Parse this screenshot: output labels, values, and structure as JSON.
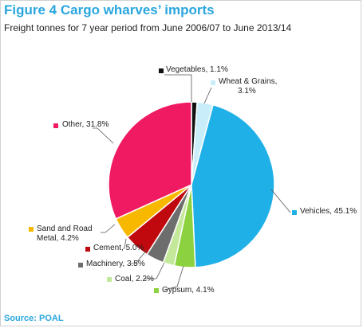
{
  "title": "Figure 4 Cargo wharves’ imports",
  "subtitle": "Freight tonnes for 7 year period from June 2006/07 to June 2013/14",
  "source": "Source: POAL",
  "chart_data": {
    "type": "pie",
    "legend": "labels beside slices",
    "slices": [
      {
        "label": "Vegetables, 1.1%",
        "value": 1.1,
        "color": "#111111"
      },
      {
        "label": "Wheat & Grains, 3.1%",
        "value": 3.1,
        "color": "#c9eefa"
      },
      {
        "label": "Vehicles, 45.1%",
        "value": 45.1,
        "color": "#1fb0e8"
      },
      {
        "label": "Gypsum, 4.1%",
        "value": 4.1,
        "color": "#8cd13f"
      },
      {
        "label": "Coal, 2.2%",
        "value": 2.2,
        "color": "#c4e89a"
      },
      {
        "label": "Machinery, 3.5%",
        "value": 3.5,
        "color": "#6d6d6d"
      },
      {
        "label": "Cement, 5.0%",
        "value": 5.0,
        "color": "#c0090f"
      },
      {
        "label": "Sand and Road Metal, 4.2%",
        "value": 4.2,
        "color": "#f9b800"
      },
      {
        "label": "Other, 31.8%",
        "value": 31.8,
        "color": "#f01a62"
      }
    ]
  }
}
